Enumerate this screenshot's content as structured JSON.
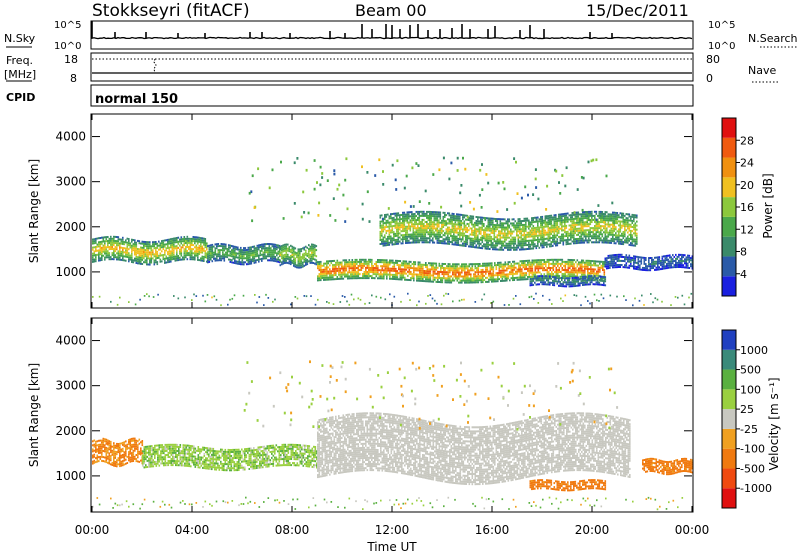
{
  "header": {
    "station": "Stokkseyri (fitACF)",
    "beam": "Beam 00",
    "date": "15/Dec/2011"
  },
  "panels": {
    "nsky_label": "N.Sky",
    "nsearch_label": "N.Search",
    "noise_ticks": [
      "10^5",
      "10^0"
    ],
    "freq_label": "Freq.",
    "freq_unit": "[MHz]",
    "freq_ticks": [
      "18",
      "8"
    ],
    "nave_label": "Nave",
    "nave_ticks": [
      "80",
      "0"
    ],
    "cpid_label": "CPID",
    "cpid_value": "normal 150"
  },
  "colors": {
    "power": [
      "#1a20e0",
      "#2a5aa8",
      "#3a8a6a",
      "#4aa84a",
      "#8cc83c",
      "#f0c020",
      "#f09010",
      "#f05a10",
      "#e01010"
    ],
    "velocity": [
      "#e01010",
      "#f04a10",
      "#f07a10",
      "#f0a020",
      "#c8c8c0",
      "#9ad040",
      "#5ab040",
      "#3a8a7a",
      "#2040c0"
    ],
    "gs_gray": "#c8c8c0"
  },
  "chart_data": [
    {
      "type": "heatmap",
      "title": "",
      "ylabel": "Slant Range [km]",
      "xlabel": "",
      "ylim": [
        200,
        4500
      ],
      "yticks": [
        "4000",
        "3000",
        "2000",
        "1000"
      ],
      "colorbar": {
        "label": "Power [dB]",
        "ticks": [
          "28",
          "24",
          "20",
          "16",
          "12",
          "8",
          "4"
        ],
        "range": [
          0,
          32
        ]
      },
      "echo_bands": [
        {
          "start_h": 0.0,
          "end_h": 4.6,
          "center_km": 1450,
          "width_km": 500,
          "peak_db": 21
        },
        {
          "start_h": 4.6,
          "end_h": 7.5,
          "center_km": 1380,
          "width_km": 380,
          "peak_db": 14
        },
        {
          "start_h": 7.5,
          "end_h": 9.0,
          "center_km": 1350,
          "width_km": 450,
          "peak_db": 18
        },
        {
          "start_h": 9.0,
          "end_h": 20.5,
          "center_km": 1000,
          "width_km": 420,
          "peak_db": 27
        },
        {
          "start_h": 11.5,
          "end_h": 21.8,
          "center_km": 1900,
          "width_km": 700,
          "peak_db": 19
        },
        {
          "start_h": 17.5,
          "end_h": 20.5,
          "center_km": 780,
          "width_km": 200,
          "peak_db": 9
        },
        {
          "start_h": 20.5,
          "end_h": 24.0,
          "center_km": 1200,
          "width_km": 300,
          "peak_db": 7
        }
      ]
    },
    {
      "type": "heatmap",
      "title": "",
      "ylabel": "Slant Range [km]",
      "xlabel": "Time UT",
      "ylim": [
        200,
        4500
      ],
      "yticks": [
        "4000",
        "3000",
        "2000",
        "1000"
      ],
      "xticks": [
        "00:00",
        "04:00",
        "08:00",
        "12:00",
        "16:00",
        "20:00",
        "00:00"
      ],
      "xlim": [
        0,
        24
      ],
      "colorbar": {
        "label": "Velocity [m s⁻¹]",
        "ticks": [
          "1000",
          "500",
          "100",
          "25",
          "-25",
          "-100",
          "-500",
          "-1000"
        ],
        "range": [
          -1000,
          1000
        ]
      },
      "echo_bands": [
        {
          "start_h": 0.0,
          "end_h": 2.0,
          "center_km": 1500,
          "width_km": 500,
          "velocity": -120
        },
        {
          "start_h": 2.0,
          "end_h": 9.0,
          "center_km": 1400,
          "width_km": 480,
          "velocity": 70
        },
        {
          "start_h": 9.0,
          "end_h": 21.5,
          "center_km": 1600,
          "width_km": 1300,
          "velocity": 0
        },
        {
          "start_h": 17.5,
          "end_h": 20.5,
          "center_km": 780,
          "width_km": 200,
          "velocity": -150
        },
        {
          "start_h": 22.0,
          "end_h": 24.0,
          "center_km": 1200,
          "width_km": 300,
          "velocity": -150
        }
      ]
    }
  ]
}
